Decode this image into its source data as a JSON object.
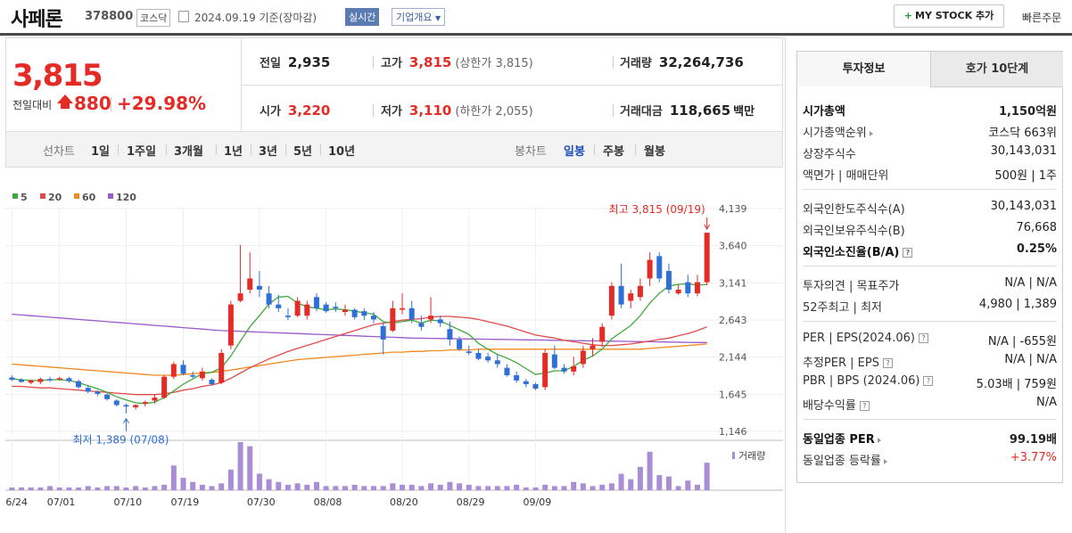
{
  "header": {
    "stock_name": "사페론",
    "stock_code": "378800",
    "market": "코스닥",
    "date": "2024.09.19 기준(장마감)",
    "realtime_label": "실시간",
    "company_info_label": "기업개요",
    "my_stock_label": "MY STOCK 추가",
    "quick_order_label": "빠른주문"
  },
  "price": {
    "current": "3,815",
    "prev_label": "전일대비",
    "change": "880",
    "change_pct": "+29.98%",
    "up_color": "#e42b26"
  },
  "quote": {
    "prev_close_label": "전일",
    "prev_close": "2,935",
    "high_label": "고가",
    "high": "3,815",
    "high_sub": "(상한가 3,815)",
    "volume_label": "거래량",
    "volume": "32,264,736",
    "open_label": "시가",
    "open": "3,220",
    "low_label": "저가",
    "low": "3,110",
    "low_sub": "(하한가 2,055)",
    "amount_label": "거래대금",
    "amount": "118,665",
    "amount_unit": "백만"
  },
  "tabs": {
    "line_label": "선차트",
    "line_items": [
      "1일",
      "1주일",
      "3개월",
      "1년",
      "3년",
      "5년",
      "10년"
    ],
    "candle_label": "봉차트",
    "candle_items": [
      "일봉",
      "주봉",
      "월봉"
    ],
    "candle_selected": "일봉"
  },
  "chart_data": {
    "type": "candlestick",
    "legend": [
      {
        "name": "5",
        "color": "#3faa3a"
      },
      {
        "name": "20",
        "color": "#e24a4a"
      },
      {
        "name": "60",
        "color": "#f08a24"
      },
      {
        "name": "120",
        "color": "#9b59c9"
      }
    ],
    "y_ticks": [
      "4,139",
      "3,640",
      "3,141",
      "2,643",
      "2,144",
      "1,645",
      "1,146"
    ],
    "ylim": [
      1146,
      4139
    ],
    "x_ticks": [
      "06/24",
      "07/01",
      "07/10",
      "07/19",
      "07/30",
      "08/08",
      "08/20",
      "08/29",
      "09/09"
    ],
    "max_annotation": "최고 3,815 (09/19)",
    "min_annotation": "최저 1,389 (07/08)",
    "volume_label": "거래량",
    "candles": [
      [
        1870,
        1900,
        1820,
        1840
      ],
      [
        1840,
        1860,
        1800,
        1810
      ],
      [
        1800,
        1840,
        1780,
        1830
      ],
      [
        1810,
        1870,
        1780,
        1850
      ],
      [
        1850,
        1880,
        1810,
        1840
      ],
      [
        1850,
        1880,
        1830,
        1860
      ],
      [
        1860,
        1880,
        1800,
        1820
      ],
      [
        1820,
        1840,
        1720,
        1740
      ],
      [
        1730,
        1760,
        1660,
        1680
      ],
      [
        1680,
        1700,
        1620,
        1650
      ],
      [
        1640,
        1660,
        1560,
        1580
      ],
      [
        1560,
        1580,
        1480,
        1500
      ],
      [
        1500,
        1520,
        1389,
        1480
      ],
      [
        1470,
        1510,
        1440,
        1500
      ],
      [
        1520,
        1560,
        1480,
        1540
      ],
      [
        1560,
        1640,
        1520,
        1600
      ],
      [
        1600,
        1900,
        1580,
        1880
      ],
      [
        1880,
        2080,
        1850,
        2050
      ],
      [
        2040,
        2100,
        1900,
        1920
      ],
      [
        1900,
        1950,
        1860,
        1880
      ],
      [
        1860,
        2000,
        1830,
        1950
      ],
      [
        1840,
        1860,
        1760,
        1780
      ],
      [
        1800,
        2250,
        1780,
        2200
      ],
      [
        2300,
        2900,
        2250,
        2850
      ],
      [
        2900,
        3650,
        2880,
        3000
      ],
      [
        3050,
        3550,
        3000,
        3200
      ],
      [
        3100,
        3300,
        2950,
        3050
      ],
      [
        3000,
        3100,
        2800,
        2850
      ],
      [
        2850,
        2980,
        2750,
        2800
      ],
      [
        2700,
        2800,
        2640,
        2680
      ],
      [
        2700,
        2950,
        2680,
        2900
      ],
      [
        2700,
        2900,
        2650,
        2850
      ],
      [
        2950,
        3000,
        2760,
        2800
      ],
      [
        2850,
        2880,
        2740,
        2760
      ],
      [
        2820,
        2880,
        2750,
        2800
      ],
      [
        2750,
        2850,
        2700,
        2780
      ],
      [
        2780,
        2800,
        2650,
        2680
      ],
      [
        2760,
        2800,
        2640,
        2700
      ],
      [
        2700,
        2750,
        2600,
        2650
      ],
      [
        2560,
        2600,
        2180,
        2380
      ],
      [
        2500,
        2900,
        2480,
        2800
      ],
      [
        2780,
        3000,
        2720,
        2800
      ],
      [
        2800,
        2900,
        2600,
        2650
      ],
      [
        2600,
        2700,
        2500,
        2550
      ],
      [
        2650,
        2950,
        2600,
        2700
      ],
      [
        2650,
        2700,
        2550,
        2600
      ],
      [
        2520,
        2620,
        2300,
        2380
      ],
      [
        2380,
        2420,
        2230,
        2250
      ],
      [
        2220,
        2300,
        2170,
        2200
      ],
      [
        2200,
        2250,
        2100,
        2120
      ],
      [
        2150,
        2200,
        2070,
        2100
      ],
      [
        2100,
        2180,
        2000,
        2050
      ],
      [
        2000,
        2050,
        1880,
        1900
      ],
      [
        1900,
        1950,
        1800,
        1830
      ],
      [
        1820,
        1850,
        1740,
        1780
      ],
      [
        1780,
        1800,
        1700,
        1720
      ],
      [
        1740,
        2250,
        1700,
        2200
      ],
      [
        2180,
        2300,
        1980,
        2000
      ],
      [
        2000,
        2050,
        1920,
        1950
      ],
      [
        1950,
        2150,
        1900,
        2020
      ],
      [
        2050,
        2300,
        2000,
        2230
      ],
      [
        2250,
        2400,
        2150,
        2300
      ],
      [
        2350,
        2600,
        2280,
        2550
      ],
      [
        2700,
        3150,
        2650,
        3100
      ],
      [
        3100,
        3400,
        2800,
        2850
      ],
      [
        2900,
        3050,
        2800,
        3000
      ],
      [
        2950,
        3200,
        2900,
        3100
      ],
      [
        3200,
        3550,
        3100,
        3450
      ],
      [
        3500,
        3550,
        3150,
        3200
      ],
      [
        3300,
        3400,
        3000,
        3050
      ],
      [
        3000,
        3120,
        2980,
        3050
      ],
      [
        3150,
        3250,
        2950,
        3000
      ],
      [
        3000,
        3250,
        2960,
        3150
      ],
      [
        3150,
        3815,
        3110,
        3815
      ]
    ],
    "ma5": [
      1850,
      1840,
      1830,
      1830,
      1840,
      1840,
      1830,
      1800,
      1760,
      1720,
      1670,
      1610,
      1570,
      1530,
      1520,
      1540,
      1600,
      1690,
      1780,
      1850,
      1920,
      1940,
      2000,
      2160,
      2360,
      2550,
      2700,
      2860,
      2950,
      2960,
      2870,
      2820,
      2800,
      2780,
      2790,
      2780,
      2760,
      2740,
      2720,
      2620,
      2600,
      2620,
      2640,
      2600,
      2640,
      2630,
      2570,
      2510,
      2450,
      2330,
      2250,
      2180,
      2130,
      2070,
      1990,
      1910,
      1930,
      1960,
      1960,
      2020,
      2100,
      2160,
      2250,
      2390,
      2480,
      2570,
      2700,
      2870,
      3000,
      3100,
      3120,
      3130,
      3110,
      3120
    ],
    "ma20": [
      1750,
      1750,
      1740,
      1730,
      1730,
      1720,
      1710,
      1700,
      1690,
      1680,
      1670,
      1660,
      1650,
      1640,
      1640,
      1640,
      1650,
      1670,
      1700,
      1720,
      1750,
      1770,
      1800,
      1860,
      1930,
      2000,
      2060,
      2120,
      2170,
      2220,
      2260,
      2300,
      2340,
      2380,
      2420,
      2460,
      2500,
      2540,
      2580,
      2600,
      2620,
      2640,
      2650,
      2660,
      2680,
      2690,
      2690,
      2680,
      2670,
      2650,
      2620,
      2590,
      2560,
      2520,
      2480,
      2440,
      2420,
      2400,
      2370,
      2350,
      2330,
      2310,
      2300,
      2300,
      2310,
      2320,
      2340,
      2360,
      2380,
      2400,
      2430,
      2460,
      2500,
      2550
    ],
    "ma60": [
      2050,
      2040,
      2030,
      2020,
      2010,
      2000,
      1990,
      1980,
      1970,
      1960,
      1950,
      1940,
      1930,
      1920,
      1910,
      1900,
      1900,
      1900,
      1910,
      1920,
      1930,
      1940,
      1950,
      1970,
      1990,
      2010,
      2030,
      2050,
      2070,
      2090,
      2110,
      2120,
      2130,
      2140,
      2150,
      2160,
      2170,
      2180,
      2190,
      2200,
      2210,
      2210,
      2220,
      2220,
      2230,
      2230,
      2240,
      2240,
      2240,
      2250,
      2250,
      2250,
      2250,
      2250,
      2250,
      2250,
      2250,
      2250,
      2250,
      2250,
      2250,
      2250,
      2250,
      2250,
      2250,
      2250,
      2250,
      2260,
      2270,
      2280,
      2290,
      2300,
      2310,
      2320
    ],
    "ma120": [
      2720,
      2710,
      2700,
      2690,
      2680,
      2670,
      2660,
      2650,
      2640,
      2630,
      2620,
      2610,
      2600,
      2590,
      2580,
      2570,
      2560,
      2550,
      2540,
      2530,
      2520,
      2510,
      2500,
      2495,
      2490,
      2485,
      2480,
      2475,
      2470,
      2465,
      2460,
      2455,
      2450,
      2445,
      2440,
      2435,
      2430,
      2425,
      2420,
      2415,
      2410,
      2405,
      2400,
      2398,
      2396,
      2394,
      2392,
      2390,
      2388,
      2386,
      2384,
      2382,
      2380,
      2378,
      2376,
      2374,
      2372,
      2370,
      2368,
      2366,
      2364,
      2362,
      2360,
      2358,
      2356,
      2354,
      2352,
      2350,
      2348,
      2346,
      2344,
      2342,
      2340,
      2340
    ],
    "volume": [
      2,
      2,
      2,
      2,
      3,
      2,
      2,
      2,
      3,
      2,
      3,
      3,
      2,
      3,
      2,
      3,
      4,
      18,
      9,
      6,
      4,
      3,
      5,
      15,
      35,
      32,
      12,
      8,
      6,
      4,
      5,
      4,
      6,
      3,
      3,
      3,
      4,
      3,
      3,
      3,
      5,
      4,
      4,
      3,
      5,
      4,
      6,
      5,
      4,
      3,
      3,
      3,
      3,
      4,
      2,
      2,
      4,
      3,
      3,
      6,
      5,
      3,
      4,
      5,
      12,
      8,
      17,
      28,
      11,
      10,
      3,
      7,
      4,
      20
    ]
  },
  "invest": {
    "tab_invest": "투자정보",
    "tab_hoga": "호가 10단계",
    "rows1": [
      {
        "k": "시가총액",
        "v": "1,150억원"
      },
      {
        "k": "시가총액순위",
        "v": "코스닥 663위"
      },
      {
        "k": "상장주식수",
        "v": "30,143,031"
      },
      {
        "k": "액면가 | 매매단위",
        "v": "500원 | 1주"
      }
    ],
    "rows2": [
      {
        "k": "외국인한도주식수(A)",
        "v": "30,143,031"
      },
      {
        "k": "외국인보유주식수(B)",
        "v": "76,668"
      },
      {
        "k": "외국인소진율(B/A)",
        "v": "0.25%"
      }
    ],
    "rows3": [
      {
        "k": "투자의견 | 목표주가",
        "v": "N/A | N/A"
      },
      {
        "k": "52주최고 | 최저",
        "v": "4,980 | 1,389"
      }
    ],
    "rows4": [
      {
        "k": "PER | EPS(2024.06)",
        "v": "N/A | -655원"
      },
      {
        "k": "추정PER | EPS",
        "v": "N/A | N/A"
      },
      {
        "k": "PBR | BPS (2024.06)",
        "v": "5.03배 | 759원"
      },
      {
        "k": "배당수익률",
        "v": "N/A"
      }
    ],
    "rows5": [
      {
        "k": "동일업종 PER",
        "v": "99.19배"
      },
      {
        "k": "동일업종 등락률",
        "v": "+3.77%"
      }
    ]
  }
}
